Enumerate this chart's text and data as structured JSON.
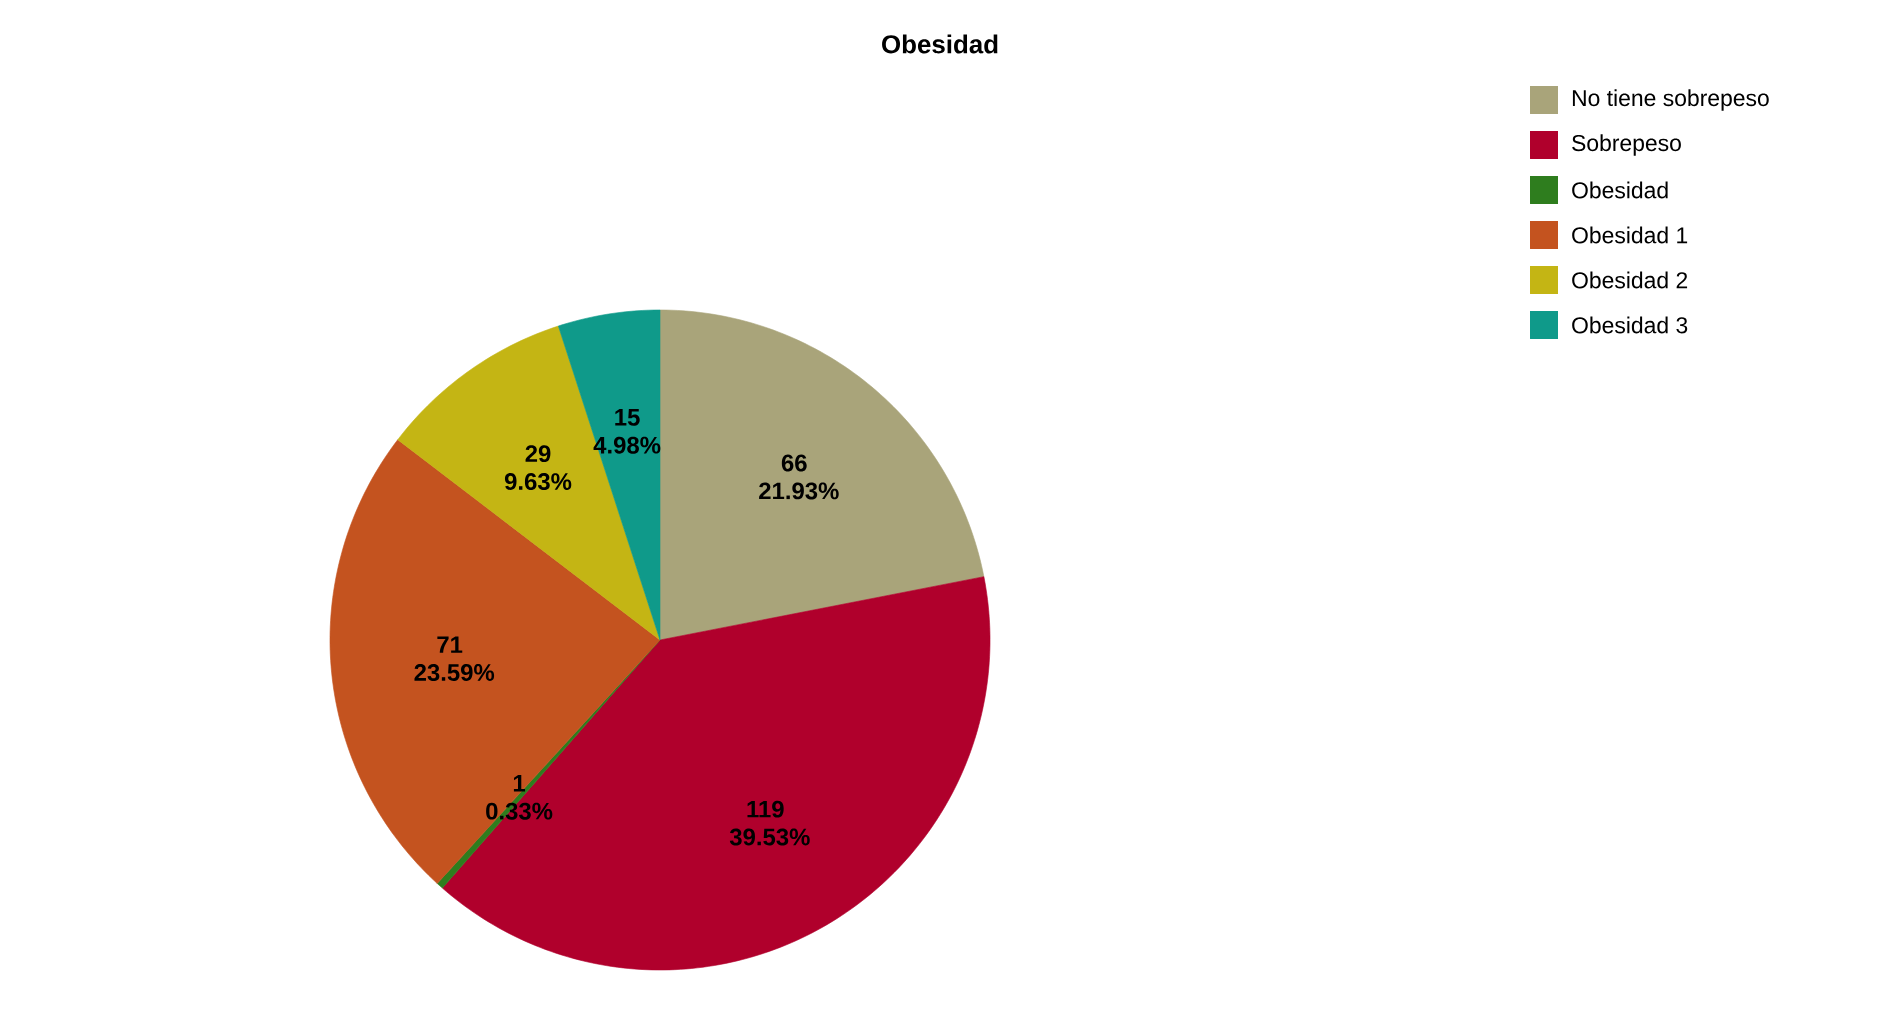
{
  "chart_data": {
    "type": "pie",
    "title": "Obesidad",
    "categories": [
      "No tiene sobrepeso",
      "Sobrepeso",
      "Obesidad",
      "Obesidad 1",
      "Obesidad 2",
      "Obesidad 3"
    ],
    "values": [
      66,
      119,
      1,
      71,
      29,
      15
    ],
    "value_labels": [
      "66 21.93%",
      "119 39.53%",
      "1 0.33%",
      "71 23.59%",
      "29 9.63%",
      "15 4.98%"
    ],
    "colors": [
      "#a9a47a",
      "#b0002c",
      "#2e7d1e",
      "#c4531f",
      "#c4b514",
      "#0f9a8a"
    ],
    "legend": "top right"
  }
}
